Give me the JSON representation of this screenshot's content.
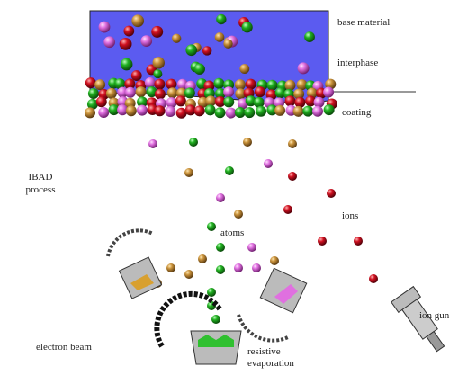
{
  "labels": {
    "base_material": "base material",
    "interphase": "interphase",
    "coating": "coating",
    "process": [
      "IBAD",
      "process"
    ],
    "atoms": "atoms",
    "ions": "ions",
    "electron_beam": "electron beam",
    "evaporation": [
      "resistive",
      "evaporation"
    ],
    "ion_gun": "ion gun"
  }
}
